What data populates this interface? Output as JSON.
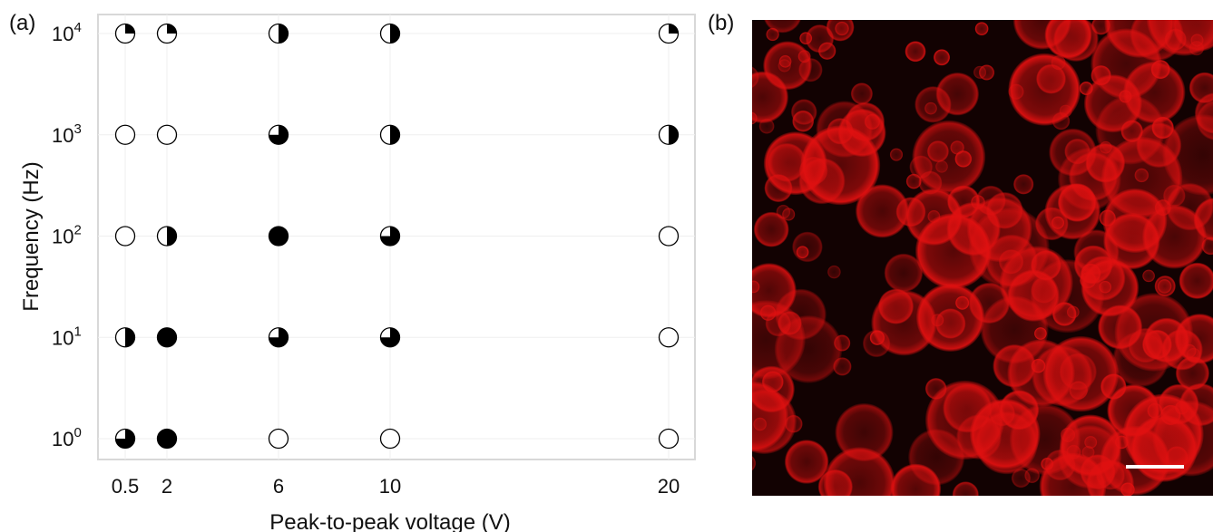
{
  "panels": {
    "a_label": "(a)",
    "b_label": "(b)"
  },
  "chart_data": {
    "type": "scatter",
    "marker_style": "pie-fraction (filled black portion of a circle)",
    "title": "",
    "xlabel": "Peak-to-peak voltage (V)",
    "ylabel": "Frequency (Hz)",
    "x_ticks": [
      0.5,
      2,
      6,
      10,
      20
    ],
    "x_tick_labels": [
      "0.5",
      "2",
      "6",
      "10",
      "20"
    ],
    "y_scale": "log",
    "y_ticks": [
      1,
      10,
      100,
      1000,
      10000
    ],
    "y_tick_labels": [
      {
        "base": "10",
        "exp": "0"
      },
      {
        "base": "10",
        "exp": "1"
      },
      {
        "base": "10",
        "exp": "2"
      },
      {
        "base": "10",
        "exp": "3"
      },
      {
        "base": "10",
        "exp": "4"
      }
    ],
    "grid": true,
    "points": [
      {
        "voltage": 0.5,
        "frequency": 10000,
        "fill": 0.25
      },
      {
        "voltage": 2,
        "frequency": 10000,
        "fill": 0.25
      },
      {
        "voltage": 6,
        "frequency": 10000,
        "fill": 0.5
      },
      {
        "voltage": 10,
        "frequency": 10000,
        "fill": 0.5
      },
      {
        "voltage": 20,
        "frequency": 10000,
        "fill": 0.25
      },
      {
        "voltage": 0.5,
        "frequency": 1000,
        "fill": 0
      },
      {
        "voltage": 2,
        "frequency": 1000,
        "fill": 0
      },
      {
        "voltage": 6,
        "frequency": 1000,
        "fill": 0.75
      },
      {
        "voltage": 10,
        "frequency": 1000,
        "fill": 0.5
      },
      {
        "voltage": 20,
        "frequency": 1000,
        "fill": 0.5
      },
      {
        "voltage": 0.5,
        "frequency": 100,
        "fill": 0
      },
      {
        "voltage": 2,
        "frequency": 100,
        "fill": 0.5
      },
      {
        "voltage": 6,
        "frequency": 100,
        "fill": 1
      },
      {
        "voltage": 10,
        "frequency": 100,
        "fill": 0.75
      },
      {
        "voltage": 20,
        "frequency": 100,
        "fill": 0
      },
      {
        "voltage": 0.5,
        "frequency": 10,
        "fill": 0.5
      },
      {
        "voltage": 2,
        "frequency": 10,
        "fill": 1
      },
      {
        "voltage": 6,
        "frequency": 10,
        "fill": 0.75
      },
      {
        "voltage": 10,
        "frequency": 10,
        "fill": 0.75
      },
      {
        "voltage": 20,
        "frequency": 10,
        "fill": 0
      },
      {
        "voltage": 0.5,
        "frequency": 1,
        "fill": 0.75
      },
      {
        "voltage": 2,
        "frequency": 1,
        "fill": 1
      },
      {
        "voltage": 6,
        "frequency": 1,
        "fill": 0
      },
      {
        "voltage": 10,
        "frequency": 1,
        "fill": 0
      },
      {
        "voltage": 20,
        "frequency": 1,
        "fill": 0
      }
    ]
  },
  "micrograph": {
    "colors": {
      "background": "#120202",
      "vesicle": "#e01010"
    },
    "has_scale_bar": true
  }
}
